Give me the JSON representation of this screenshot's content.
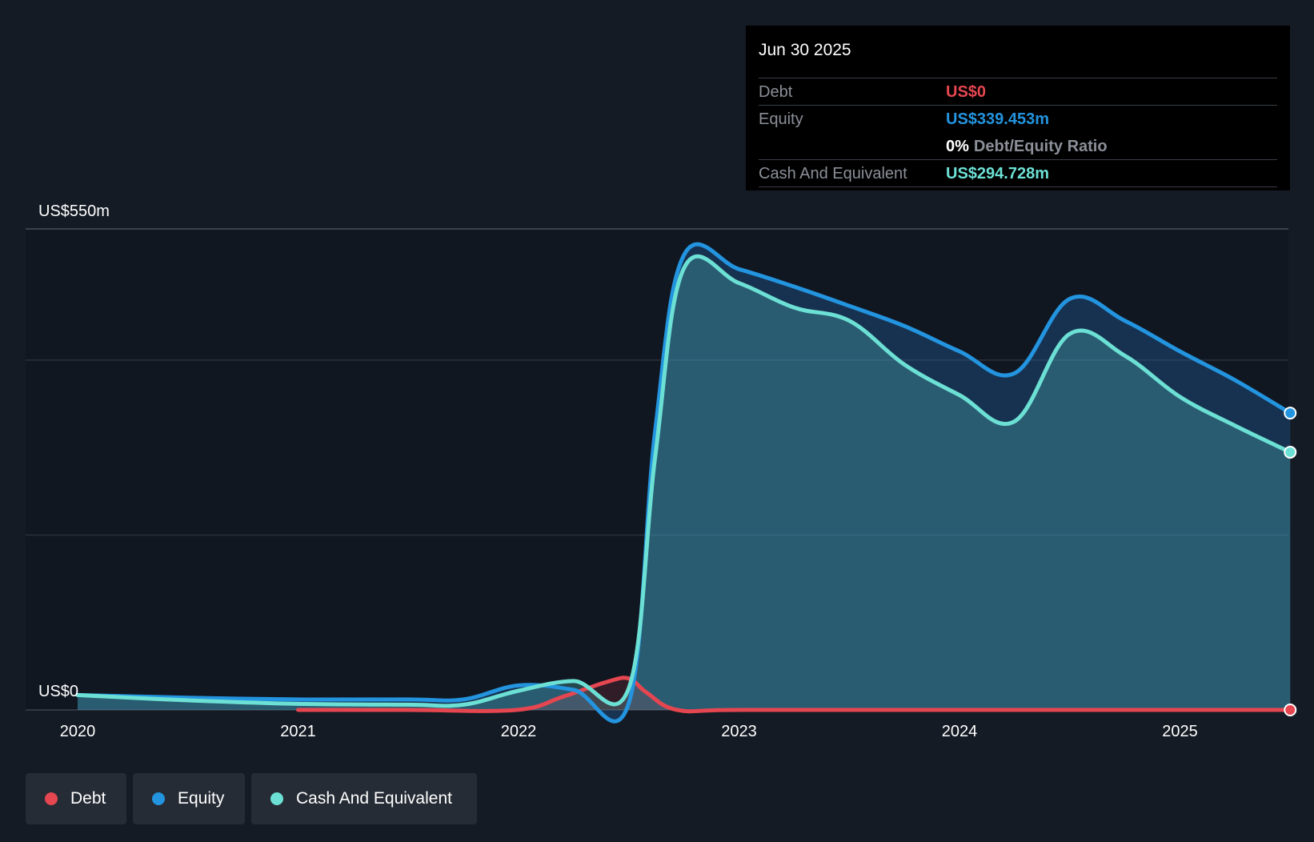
{
  "colors": {
    "debt": "#e64650",
    "equity": "#2394df",
    "cash": "#6ce0d4",
    "background": "#151b24",
    "grid": "#2a313b"
  },
  "tooltip": {
    "date": "Jun 30 2025",
    "debt_label": "Debt",
    "debt_value": "US$0",
    "equity_label": "Equity",
    "equity_value": "US$339.453m",
    "ratio_pct": "0%",
    "ratio_label": "Debt/Equity Ratio",
    "cash_label": "Cash And Equivalent",
    "cash_value": "US$294.728m"
  },
  "legend": {
    "debt_label": "Debt",
    "equity_label": "Equity",
    "cash_label": "Cash And Equivalent"
  },
  "chart_data": {
    "type": "area",
    "title": "",
    "ylabel_top": "US$550m",
    "ylabel_bottom": "US$0",
    "ylim": [
      0,
      550
    ],
    "xlim": [
      2019.77,
      2025.5
    ],
    "x_ticks": [
      "2020",
      "2021",
      "2022",
      "2023",
      "2024",
      "2025"
    ],
    "x_tick_values": [
      2020,
      2021,
      2022,
      2023,
      2024,
      2025
    ],
    "series": [
      {
        "name": "Debt",
        "x": [
          2021.0,
          2021.5,
          2021.99,
          2022.2,
          2022.4,
          2022.5,
          2022.58,
          2022.72,
          2023.0,
          2024.0,
          2025.0,
          2025.5
        ],
        "values": [
          0,
          0,
          0,
          15,
          32,
          36,
          20,
          0,
          0,
          0,
          0,
          0
        ]
      },
      {
        "name": "Equity",
        "x": [
          2020.0,
          2020.5,
          2021.0,
          2021.5,
          2021.75,
          2022.0,
          2022.25,
          2022.5,
          2022.62,
          2022.75,
          2023.0,
          2023.25,
          2023.5,
          2023.75,
          2024.0,
          2024.25,
          2024.5,
          2024.75,
          2025.0,
          2025.25,
          2025.5
        ],
        "values": [
          17,
          14,
          12,
          12,
          12,
          28,
          23,
          8,
          320,
          520,
          504,
          484,
          462,
          439,
          410,
          385,
          470,
          445,
          410,
          377,
          339.453
        ]
      },
      {
        "name": "Cash And Equivalent",
        "x": [
          2020.0,
          2020.5,
          2021.0,
          2021.5,
          2021.75,
          2022.0,
          2022.25,
          2022.5,
          2022.62,
          2022.75,
          2023.0,
          2023.25,
          2023.5,
          2023.75,
          2024.0,
          2024.25,
          2024.5,
          2024.75,
          2025.0,
          2025.25,
          2025.5
        ],
        "values": [
          17,
          11,
          7,
          6,
          6,
          22,
          33,
          25,
          290,
          505,
          488,
          460,
          445,
          395,
          360,
          330,
          430,
          405,
          358,
          325,
          294.728
        ]
      }
    ]
  }
}
